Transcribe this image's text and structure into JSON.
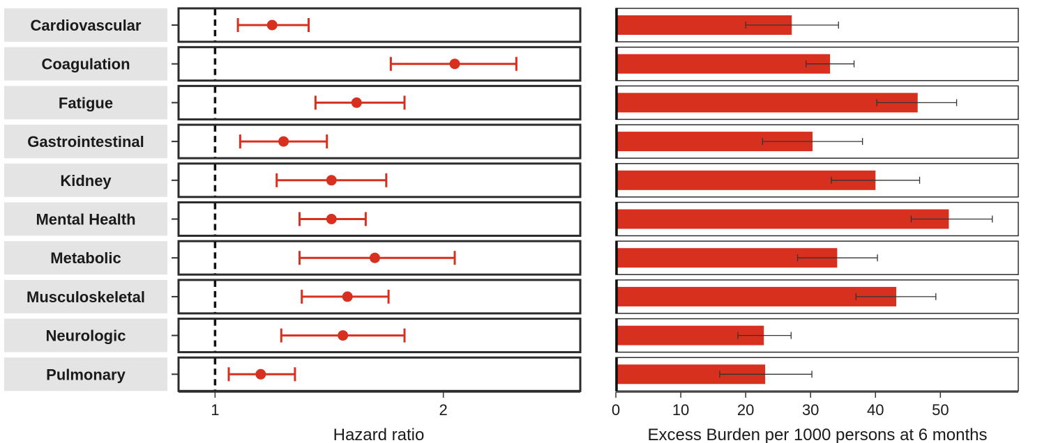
{
  "chart_data": [
    {
      "type": "forest",
      "xlabel": "Hazard ratio",
      "xlim": [
        0.84,
        2.6
      ],
      "xticks": [
        1,
        2
      ],
      "reference_line": 1,
      "categories": [
        "Cardiovascular",
        "Coagulation",
        "Fatigue",
        "Gastrointestinal",
        "Kidney",
        "Mental Health",
        "Metabolic",
        "Musculoskeletal",
        "Neurologic",
        "Pulmonary"
      ],
      "estimates": [
        1.25,
        2.05,
        1.62,
        1.3,
        1.51,
        1.51,
        1.7,
        1.58,
        1.56,
        1.2
      ],
      "ci_lower": [
        1.1,
        1.77,
        1.44,
        1.11,
        1.27,
        1.37,
        1.37,
        1.38,
        1.29,
        1.06
      ],
      "ci_upper": [
        1.41,
        2.32,
        1.83,
        1.49,
        1.75,
        1.66,
        2.05,
        1.76,
        1.83,
        1.35
      ],
      "color": "#d7301f"
    },
    {
      "type": "bar",
      "orientation": "horizontal",
      "xlabel": "Excess Burden per 1000 persons at 6 months",
      "xlim": [
        0,
        62
      ],
      "xticks": [
        0,
        10,
        20,
        30,
        40,
        50
      ],
      "categories": [
        "Cardiovascular",
        "Coagulation",
        "Fatigue",
        "Gastrointestinal",
        "Kidney",
        "Mental Health",
        "Metabolic",
        "Musculoskeletal",
        "Neurologic",
        "Pulmonary"
      ],
      "values": [
        27.1,
        33.0,
        46.5,
        30.3,
        40.0,
        51.3,
        34.1,
        43.2,
        22.8,
        23.0
      ],
      "err_lower": [
        20.0,
        29.3,
        40.2,
        22.6,
        33.2,
        45.5,
        28.0,
        37.0,
        18.8,
        16.0
      ],
      "err_upper": [
        34.3,
        36.7,
        52.5,
        38.0,
        46.8,
        58.0,
        40.3,
        49.3,
        27.0,
        30.2
      ],
      "color": "#d7301f"
    }
  ]
}
